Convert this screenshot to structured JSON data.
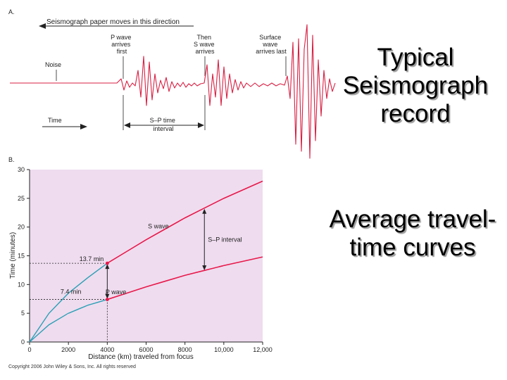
{
  "slide": {
    "title1": [
      "Typical",
      "Seismograph",
      "record"
    ],
    "title2": [
      "Average travel-",
      "time curves"
    ],
    "copyright": "Copyright 2006 John Wiley & Sons, Inc. All rights reserved"
  },
  "seismograph": {
    "panel_label": "A.",
    "direction_label": "Seismograph paper moves in this direction",
    "p_wave_label": [
      "P wave",
      "arrives",
      "first"
    ],
    "s_wave_label": [
      "Then",
      "S wave",
      "arrives"
    ],
    "surface_wave_label": [
      "Surface",
      "wave",
      "arrives last"
    ],
    "noise_label": "Noise",
    "time_label": "Time",
    "sp_label": [
      "S–P time",
      "interval"
    ],
    "trace_color": "#d81f43"
  },
  "colors": {
    "plot_background": "#efdcef",
    "s_wave": "#e8194a",
    "p_wave": "#e8194a",
    "crust_curves": "#2a9fb5"
  },
  "chart_data": {
    "type": "line",
    "panel_label": "B.",
    "xlabel": "Distance (km) traveled from focus",
    "ylabel": "Time (minutes)",
    "xlim": [
      0,
      12000
    ],
    "ylim": [
      0,
      30
    ],
    "xticks": [
      0,
      2000,
      4000,
      6000,
      8000,
      10000,
      12000
    ],
    "xtick_labels": [
      "0",
      "2000",
      "4000",
      "6000",
      "8000",
      "10,000",
      "12,000"
    ],
    "yticks": [
      0,
      5,
      10,
      15,
      20,
      25,
      30
    ],
    "ytick_labels": [
      "0",
      "5",
      "10",
      "15",
      "20",
      "25",
      "30"
    ],
    "series": [
      {
        "name": "S wave",
        "x": [
          4000,
          6000,
          8000,
          10000,
          12000
        ],
        "y": [
          13.7,
          17.8,
          21.6,
          25.0,
          28.0
        ]
      },
      {
        "name": "P wave",
        "x": [
          4000,
          6000,
          8000,
          10000,
          12000
        ],
        "y": [
          7.4,
          9.6,
          11.6,
          13.3,
          14.8
        ]
      },
      {
        "x": [
          0,
          1000,
          2000,
          3000,
          4000
        ],
        "y": [
          0,
          5.0,
          8.5,
          11.2,
          13.7
        ]
      },
      {
        "x": [
          0,
          1000,
          2000,
          3000,
          4000
        ],
        "y": [
          0,
          3.0,
          5.0,
          6.4,
          7.4
        ]
      }
    ],
    "annotations": {
      "s_marker": "13.7 min",
      "p_marker": "7.4 min",
      "interval": "S–P interval"
    },
    "marker_x": 4000,
    "interval_x": 9000
  }
}
